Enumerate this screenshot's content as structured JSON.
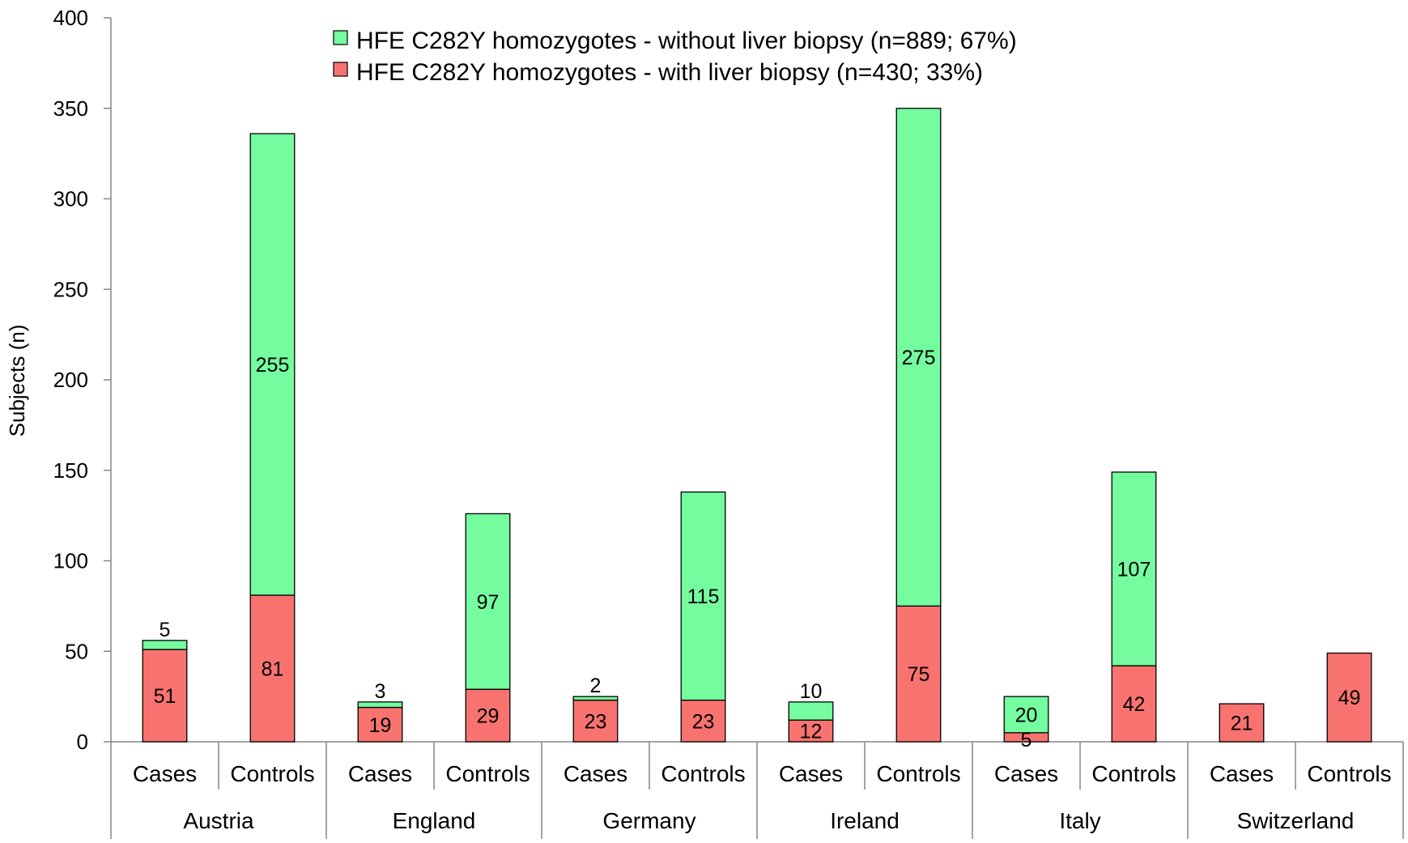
{
  "chart_data": {
    "type": "bar",
    "stacked": true,
    "ylabel": "Subjects (n)",
    "ylim": [
      0,
      400
    ],
    "yticks": [
      0,
      50,
      100,
      150,
      200,
      250,
      300,
      350,
      400
    ],
    "groups": [
      "Austria",
      "England",
      "Germany",
      "Ireland",
      "Italy",
      "Switzerland"
    ],
    "categories": [
      "Cases",
      "Controls",
      "Cases",
      "Controls",
      "Cases",
      "Controls",
      "Cases",
      "Controls",
      "Cases",
      "Controls",
      "Cases",
      "Controls"
    ],
    "series": [
      {
        "name": "HFE C282Y homozygotes - with liver biopsy (n=430; 33%)",
        "color": "#f8736f",
        "values": [
          51,
          81,
          19,
          29,
          23,
          23,
          12,
          75,
          5,
          42,
          21,
          49
        ]
      },
      {
        "name": "HFE C282Y homozygotes - without liver biopsy (n=889; 67%)",
        "color": "#74fc9f",
        "values": [
          5,
          255,
          3,
          97,
          2,
          115,
          10,
          275,
          20,
          107,
          null,
          null
        ]
      }
    ],
    "legend_order": [
      1,
      0
    ],
    "legend_position": "top-center",
    "grid": false
  }
}
